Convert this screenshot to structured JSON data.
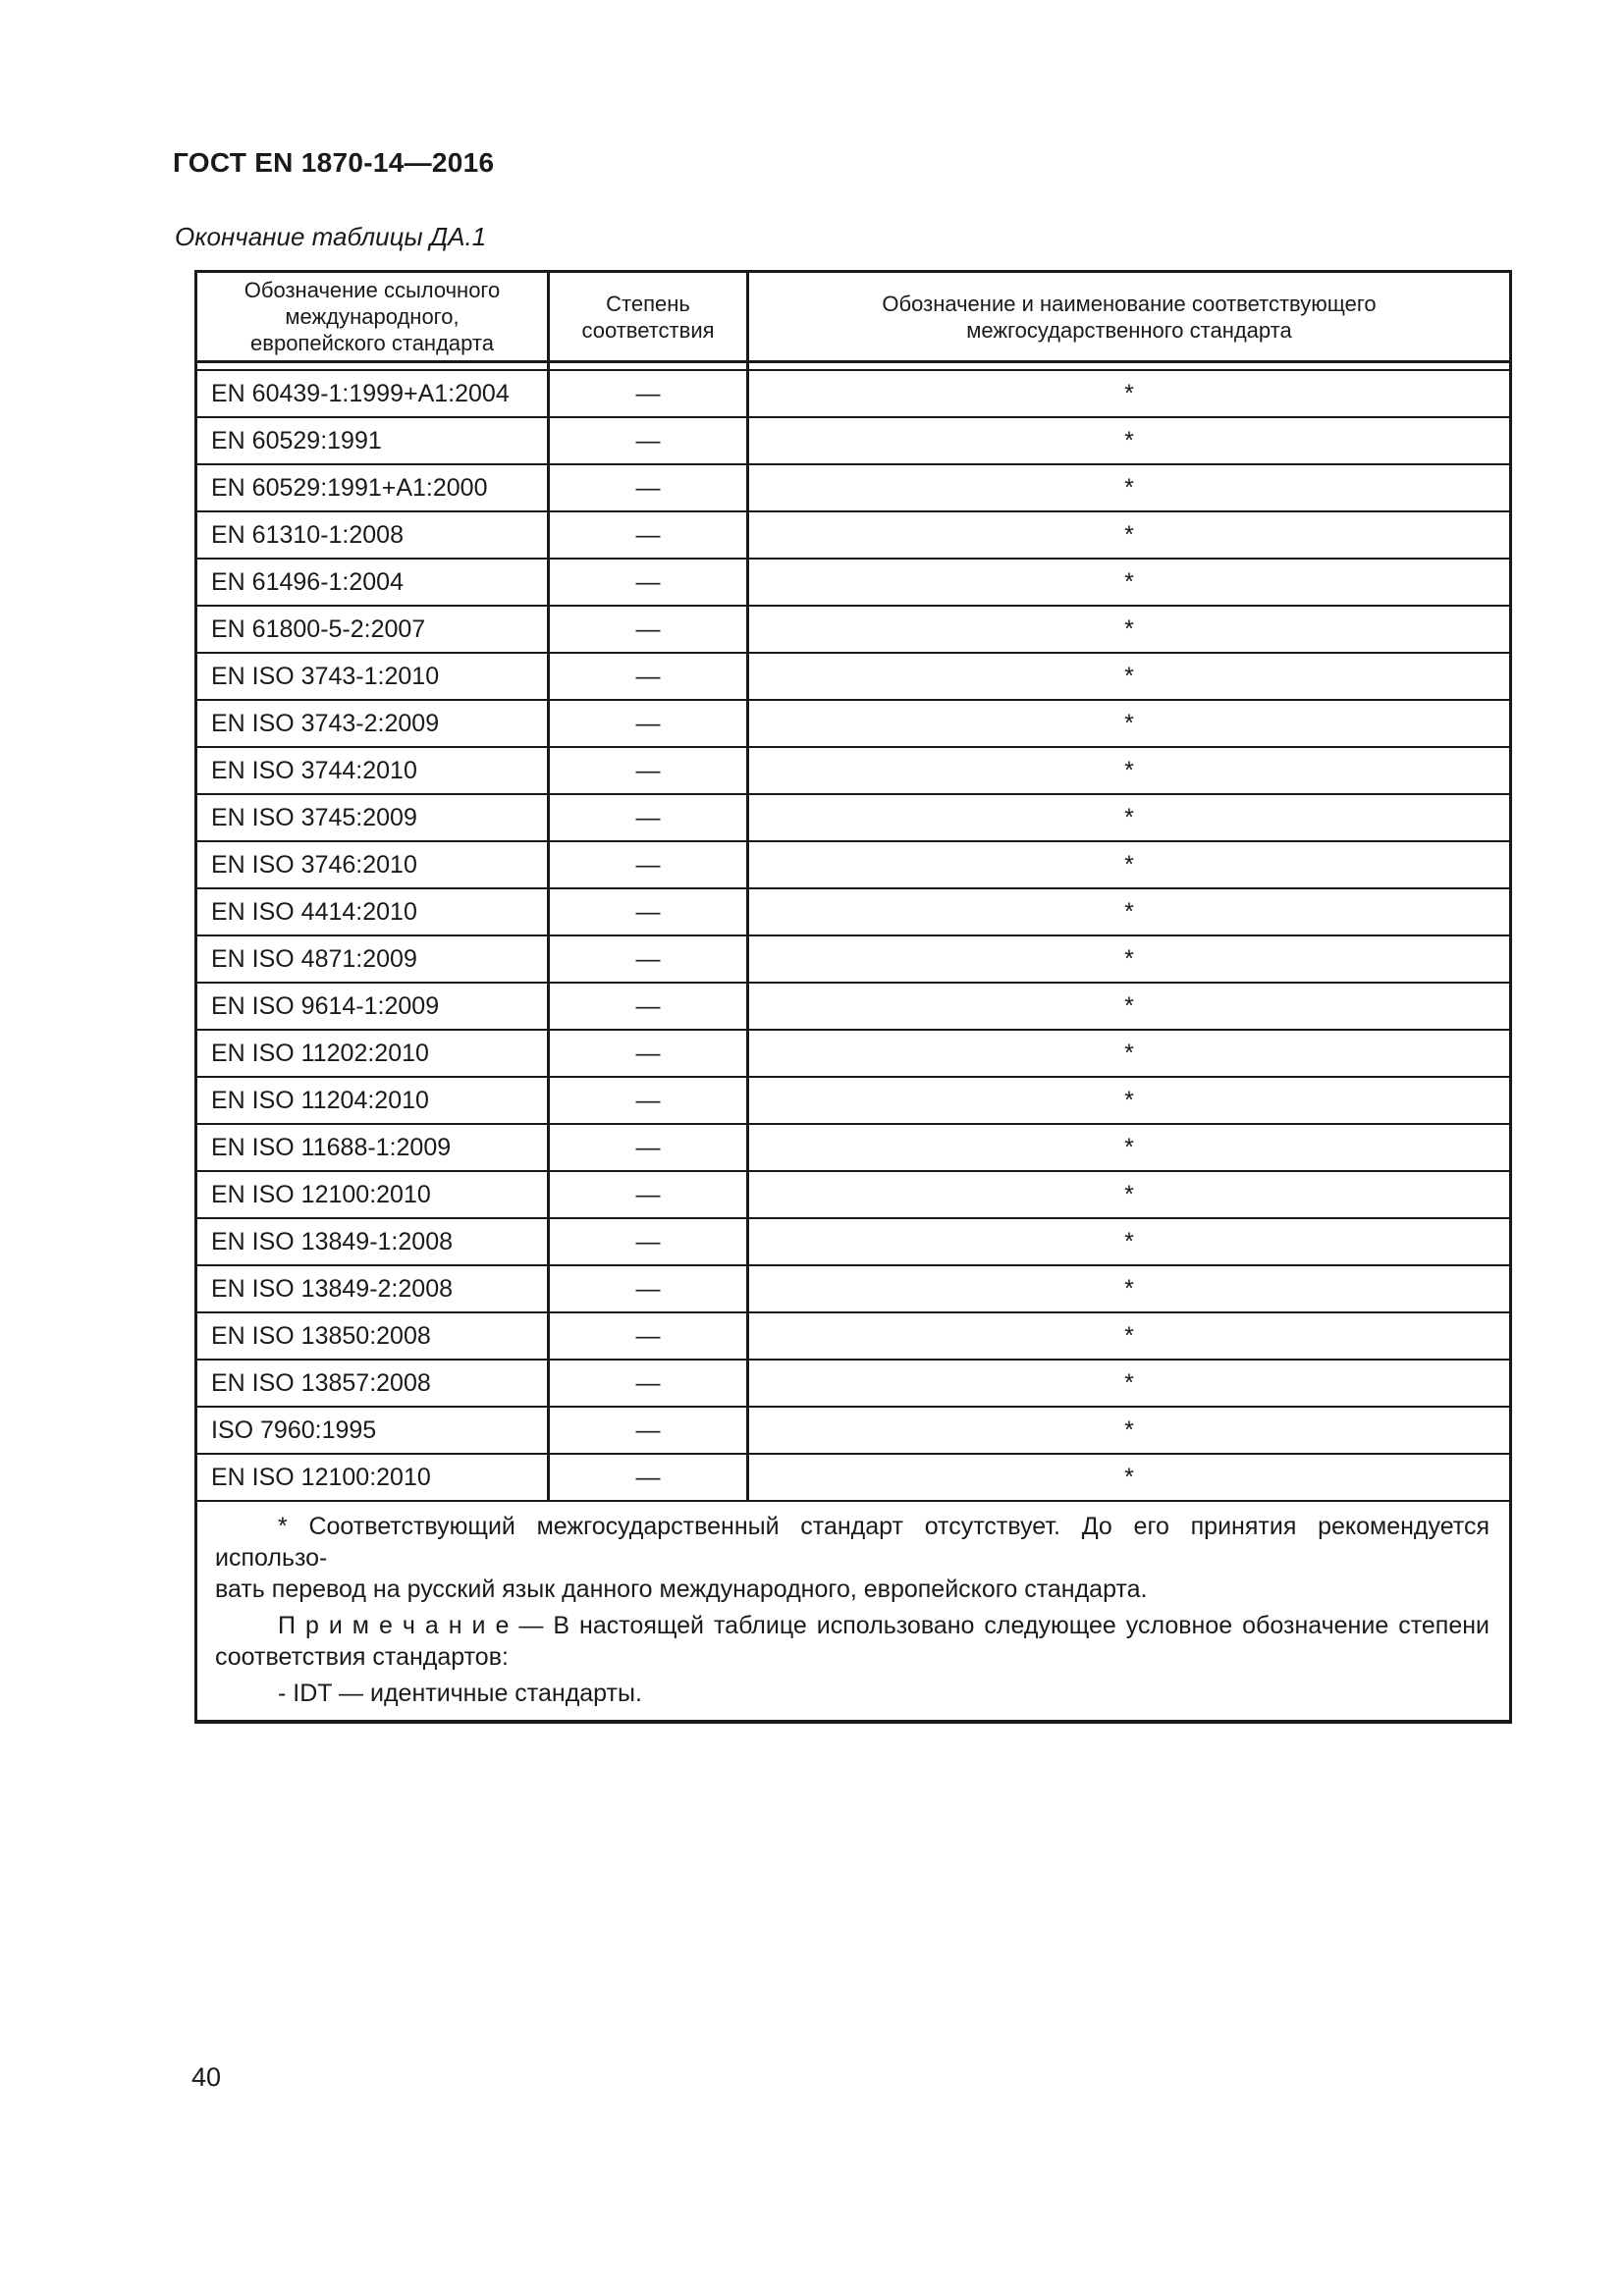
{
  "document": {
    "title": "ГОСТ EN 1870-14—2016",
    "table_caption": "Окончание таблицы ДА.1",
    "page_number": "40"
  },
  "table": {
    "columns": [
      {
        "label": "Обозначение ссылочного\nмеждународного,\nевропейского стандарта"
      },
      {
        "label": "Степень\nсоответствия"
      },
      {
        "label": "Обозначение и наименование соответствующего\nмежгосударственного стандарта"
      }
    ],
    "rows": [
      {
        "reference_standard": "EN 60439-1:1999+A1:2004",
        "conformity_degree": "—",
        "interstate_standard": "*"
      },
      {
        "reference_standard": "EN 60529:1991",
        "conformity_degree": "—",
        "interstate_standard": "*"
      },
      {
        "reference_standard": "EN 60529:1991+A1:2000",
        "conformity_degree": "—",
        "interstate_standard": "*"
      },
      {
        "reference_standard": "EN 61310-1:2008",
        "conformity_degree": "—",
        "interstate_standard": "*"
      },
      {
        "reference_standard": "EN 61496-1:2004",
        "conformity_degree": "—",
        "interstate_standard": "*"
      },
      {
        "reference_standard": "EN 61800-5-2:2007",
        "conformity_degree": "—",
        "interstate_standard": "*"
      },
      {
        "reference_standard": "EN ISO 3743-1:2010",
        "conformity_degree": "—",
        "interstate_standard": "*"
      },
      {
        "reference_standard": "EN ISO 3743-2:2009",
        "conformity_degree": "—",
        "interstate_standard": "*"
      },
      {
        "reference_standard": "EN ISO 3744:2010",
        "conformity_degree": "—",
        "interstate_standard": "*"
      },
      {
        "reference_standard": "EN ISO 3745:2009",
        "conformity_degree": "—",
        "interstate_standard": "*"
      },
      {
        "reference_standard": "EN ISO 3746:2010",
        "conformity_degree": "—",
        "interstate_standard": "*"
      },
      {
        "reference_standard": "EN ISO 4414:2010",
        "conformity_degree": "—",
        "interstate_standard": "*"
      },
      {
        "reference_standard": "EN ISO 4871:2009",
        "conformity_degree": "—",
        "interstate_standard": "*"
      },
      {
        "reference_standard": "EN ISO 9614-1:2009",
        "conformity_degree": "—",
        "interstate_standard": "*"
      },
      {
        "reference_standard": "EN ISO 11202:2010",
        "conformity_degree": "—",
        "interstate_standard": "*"
      },
      {
        "reference_standard": "EN ISO 11204:2010",
        "conformity_degree": "—",
        "interstate_standard": "*"
      },
      {
        "reference_standard": "EN ISO 11688-1:2009",
        "conformity_degree": "—",
        "interstate_standard": "*"
      },
      {
        "reference_standard": "EN ISO 12100:2010",
        "conformity_degree": "—",
        "interstate_standard": "*"
      },
      {
        "reference_standard": "EN ISO 13849-1:2008",
        "conformity_degree": "—",
        "interstate_standard": "*"
      },
      {
        "reference_standard": "EN ISO 13849-2:2008",
        "conformity_degree": "—",
        "interstate_standard": "*"
      },
      {
        "reference_standard": "EN ISO 13850:2008",
        "conformity_degree": "—",
        "interstate_standard": "*"
      },
      {
        "reference_standard": "EN ISO 13857:2008",
        "conformity_degree": "—",
        "interstate_standard": "*"
      },
      {
        "reference_standard": "ISO 7960:1995",
        "conformity_degree": "—",
        "interstate_standard": "*"
      },
      {
        "reference_standard": "EN ISO 12100:2010",
        "conformity_degree": "—",
        "interstate_standard": "*"
      }
    ],
    "footnotes": [
      {
        "lines": [
          "* Соответствующий межгосударственный стандарт отсутствует. До его принятия рекомендуется использо-",
          "вать перевод на русский язык данного международного, европейского стандарта."
        ]
      },
      {
        "lines": [
          "П р и м е ч а н и е — В настоящей таблице использовано следующее условное обозначение степени",
          "соответствия стандартов:"
        ]
      },
      {
        "lines": [
          "- IDT — идентичные стандарты."
        ]
      }
    ]
  },
  "colors": {
    "text": "#1a1a1a",
    "border": "#1a1a1a",
    "background": "#ffffff"
  }
}
